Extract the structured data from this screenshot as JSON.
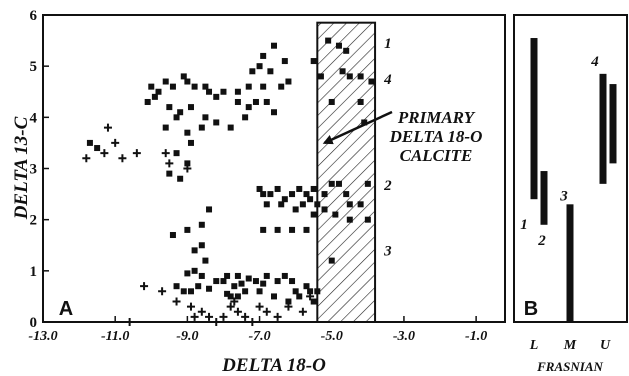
{
  "chart_data": [
    {
      "type": "scatter",
      "panel_label": "A",
      "xlabel": "DELTA 18-O",
      "ylabel": "DELTA 13-C",
      "xlim": [
        -13.0,
        -0.2
      ],
      "ylim": [
        0,
        6
      ],
      "x_ticks": [
        "-13.0",
        "-11.0",
        "-9.0",
        "-7.0",
        "-5.0",
        "-3.0",
        "-1.0"
      ],
      "y_ticks": [
        "0",
        "1",
        "2",
        "3",
        "4",
        "5",
        "6"
      ],
      "region": {
        "x_range": [
          -5.4,
          -3.8
        ],
        "y_range": [
          0,
          5.85
        ],
        "fill": "hatched",
        "annotation": [
          "PRIMARY",
          "DELTA 18-O",
          "CALCITE"
        ],
        "arrow_to": {
          "x": -5.2,
          "y": 3.5
        }
      },
      "group_labels": [
        {
          "text": "1",
          "x": -3.55,
          "y": 5.45
        },
        {
          "text": "4",
          "x": -3.55,
          "y": 4.75
        },
        {
          "text": "2",
          "x": -3.55,
          "y": 2.68
        },
        {
          "text": "3",
          "x": -3.55,
          "y": 1.4
        }
      ],
      "series": [
        {
          "marker": "square",
          "points": [
            [
              -6.6,
              5.4
            ],
            [
              -6.9,
              5.2
            ],
            [
              -6.3,
              5.1
            ],
            [
              -7.0,
              5.0
            ],
            [
              -7.2,
              4.9
            ],
            [
              -6.7,
              4.9
            ],
            [
              -6.4,
              4.6
            ],
            [
              -6.9,
              4.6
            ],
            [
              -7.3,
              4.6
            ],
            [
              -7.6,
              4.5
            ],
            [
              -6.2,
              4.7
            ],
            [
              -6.8,
              4.3
            ],
            [
              -7.3,
              4.2
            ],
            [
              -7.1,
              4.3
            ],
            [
              -7.6,
              4.3
            ],
            [
              -8.0,
              4.5
            ],
            [
              -8.2,
              4.4
            ],
            [
              -8.4,
              4.5
            ],
            [
              -8.5,
              4.6
            ],
            [
              -8.8,
              4.6
            ],
            [
              -9.0,
              4.7
            ],
            [
              -9.1,
              4.8
            ],
            [
              -9.4,
              4.6
            ],
            [
              -9.6,
              4.7
            ],
            [
              -9.8,
              4.5
            ],
            [
              -9.9,
              4.4
            ],
            [
              -10.0,
              4.6
            ],
            [
              -10.1,
              4.3
            ],
            [
              -9.5,
              4.2
            ],
            [
              -9.2,
              4.1
            ],
            [
              -8.9,
              4.2
            ],
            [
              -8.5,
              4.0
            ],
            [
              -8.2,
              3.9
            ],
            [
              -9.3,
              4.0
            ],
            [
              -9.6,
              3.8
            ],
            [
              -9.0,
              3.7
            ],
            [
              -8.6,
              3.8
            ],
            [
              -7.8,
              3.8
            ],
            [
              -7.4,
              4.0
            ],
            [
              -6.6,
              4.1
            ],
            [
              -8.9,
              3.5
            ],
            [
              -9.3,
              3.3
            ],
            [
              -9.0,
              3.1
            ],
            [
              -9.5,
              2.9
            ],
            [
              -9.2,
              2.8
            ],
            [
              -11.7,
              3.5
            ],
            [
              -11.5,
              3.4
            ],
            [
              -5.1,
              5.5
            ],
            [
              -4.8,
              5.4
            ],
            [
              -4.6,
              5.3
            ],
            [
              -4.7,
              4.9
            ],
            [
              -4.5,
              4.8
            ],
            [
              -4.2,
              4.8
            ],
            [
              -5.0,
              4.3
            ],
            [
              -4.2,
              4.3
            ],
            [
              -4.1,
              3.9
            ],
            [
              -3.9,
              4.7
            ],
            [
              -5.5,
              5.1
            ],
            [
              -5.3,
              4.8
            ],
            [
              -7.0,
              2.6
            ],
            [
              -6.9,
              2.5
            ],
            [
              -6.7,
              2.5
            ],
            [
              -6.5,
              2.6
            ],
            [
              -6.3,
              2.4
            ],
            [
              -6.1,
              2.5
            ],
            [
              -5.9,
              2.6
            ],
            [
              -5.7,
              2.5
            ],
            [
              -5.5,
              2.6
            ],
            [
              -6.8,
              2.3
            ],
            [
              -6.4,
              2.3
            ],
            [
              -6.0,
              2.2
            ],
            [
              -5.8,
              2.3
            ],
            [
              -5.6,
              2.4
            ],
            [
              -5.4,
              2.3
            ],
            [
              -5.2,
              2.5
            ],
            [
              -5.0,
              2.7
            ],
            [
              -4.8,
              2.7
            ],
            [
              -4.6,
              2.5
            ],
            [
              -4.5,
              2.3
            ],
            [
              -4.2,
              2.3
            ],
            [
              -4.0,
              2.7
            ],
            [
              -6.9,
              1.8
            ],
            [
              -6.5,
              1.8
            ],
            [
              -6.1,
              1.8
            ],
            [
              -5.7,
              1.8
            ],
            [
              -5.5,
              2.1
            ],
            [
              -5.2,
              2.2
            ],
            [
              -4.9,
              2.1
            ],
            [
              -4.5,
              2.0
            ],
            [
              -4.0,
              2.0
            ],
            [
              -8.4,
              2.2
            ],
            [
              -8.6,
              1.9
            ],
            [
              -9.0,
              1.8
            ],
            [
              -9.4,
              1.7
            ],
            [
              -8.6,
              1.5
            ],
            [
              -8.8,
              1.4
            ],
            [
              -8.5,
              1.2
            ],
            [
              -8.8,
              1.0
            ],
            [
              -8.6,
              0.9
            ],
            [
              -8.7,
              0.7
            ],
            [
              -8.9,
              0.6
            ],
            [
              -7.9,
              0.9
            ],
            [
              -7.6,
              0.9
            ],
            [
              -7.3,
              0.85
            ],
            [
              -7.1,
              0.8
            ],
            [
              -6.8,
              0.9
            ],
            [
              -6.5,
              0.8
            ],
            [
              -6.3,
              0.9
            ],
            [
              -6.1,
              0.8
            ],
            [
              -7.7,
              0.7
            ],
            [
              -7.4,
              0.6
            ],
            [
              -7.0,
              0.6
            ],
            [
              -6.6,
              0.5
            ],
            [
              -6.2,
              0.4
            ],
            [
              -5.9,
              0.5
            ],
            [
              -5.6,
              0.6
            ],
            [
              -5.5,
              0.4
            ],
            [
              -7.8,
              0.5
            ],
            [
              -5.0,
              1.2
            ],
            [
              -9.3,
              0.7
            ],
            [
              -9.1,
              0.6
            ],
            [
              -8.2,
              0.8
            ],
            [
              -8.0,
              0.8
            ],
            [
              -7.6,
              0.5
            ],
            [
              -5.7,
              0.7
            ],
            [
              -5.4,
              0.6
            ],
            [
              -7.9,
              0.55
            ],
            [
              -7.5,
              0.75
            ],
            [
              -6.9,
              0.75
            ],
            [
              -6.0,
              0.6
            ],
            [
              -8.4,
              0.65
            ],
            [
              -9.0,
              0.95
            ]
          ]
        },
        {
          "marker": "plus",
          "points": [
            [
              -11.2,
              3.8
            ],
            [
              -11.0,
              3.5
            ],
            [
              -11.3,
              3.3
            ],
            [
              -10.8,
              3.2
            ],
            [
              -11.8,
              3.2
            ],
            [
              -10.4,
              3.3
            ],
            [
              -9.6,
              3.3
            ],
            [
              -9.5,
              3.1
            ],
            [
              -9.0,
              3.0
            ],
            [
              -10.2,
              0.7
            ],
            [
              -9.7,
              0.6
            ],
            [
              -9.3,
              0.4
            ],
            [
              -8.9,
              0.3
            ],
            [
              -8.6,
              0.2
            ],
            [
              -8.4,
              0.1
            ],
            [
              -8.2,
              0.0
            ],
            [
              -8.0,
              0.1
            ],
            [
              -7.8,
              0.3
            ],
            [
              -7.6,
              0.2
            ],
            [
              -7.4,
              0.1
            ],
            [
              -7.2,
              0.0
            ],
            [
              -7.0,
              0.3
            ],
            [
              -6.8,
              0.2
            ],
            [
              -6.5,
              0.1
            ],
            [
              -6.2,
              0.3
            ],
            [
              -5.8,
              0.2
            ],
            [
              -5.6,
              0.5
            ],
            [
              -7.7,
              0.4
            ],
            [
              -10.6,
              0.0
            ],
            [
              -8.8,
              0.1
            ]
          ]
        }
      ]
    },
    {
      "type": "bar",
      "panel_label": "B",
      "xlabel": "FRASNIAN",
      "categories": [
        "L",
        "M",
        "U"
      ],
      "ylim": [
        0,
        6
      ],
      "bars": [
        {
          "label": "1",
          "category": "L",
          "range": [
            2.4,
            5.55
          ]
        },
        {
          "label": "2",
          "category": "L",
          "range": [
            1.9,
            2.95
          ]
        },
        {
          "label": "3",
          "category": "M",
          "range": [
            0.0,
            2.3
          ]
        },
        {
          "label": "4",
          "category": "U",
          "range": [
            2.7,
            4.85
          ]
        },
        {
          "label": "4",
          "category": "U",
          "range": [
            3.1,
            4.65
          ]
        }
      ]
    }
  ]
}
